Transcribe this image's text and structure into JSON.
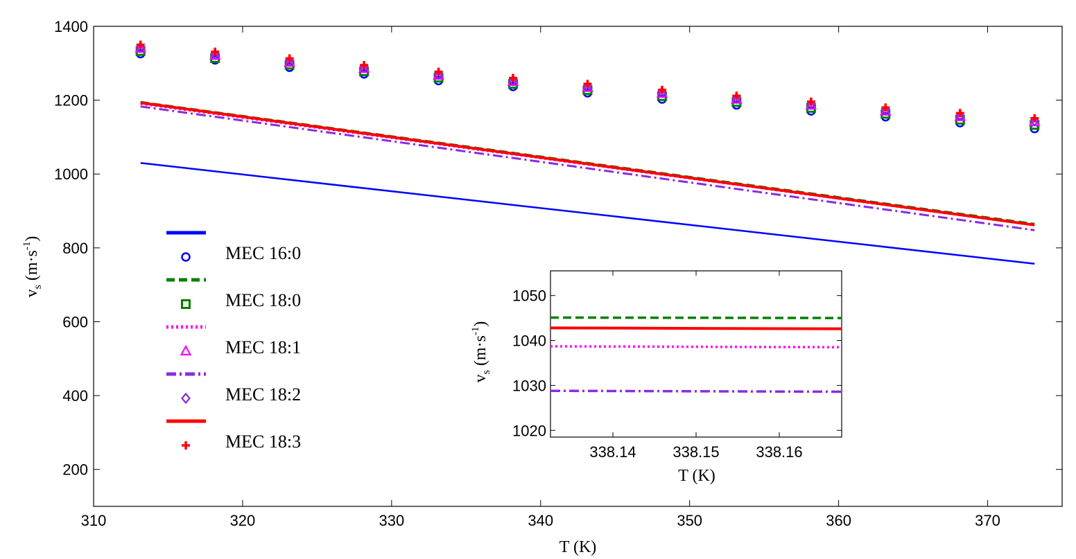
{
  "chart_data": [
    {
      "type": "line",
      "role": "main",
      "title": "",
      "xlabel": "T (K)",
      "ylabel": "v_s (m·s^-1)",
      "ylabel_main": "v",
      "ylabel_sub": "s",
      "ylabel_rest": " (m·s",
      "ylabel_sup": "-1",
      "ylabel_close": ")",
      "xlim": [
        310,
        375
      ],
      "ylim": [
        100,
        1400
      ],
      "xticks": [
        310,
        320,
        330,
        340,
        350,
        360,
        370
      ],
      "yticks": [
        200,
        400,
        600,
        800,
        1000,
        1200,
        1400
      ],
      "x": [
        313.15,
        318.15,
        323.15,
        328.15,
        333.15,
        338.15,
        343.15,
        348.15,
        353.15,
        358.15,
        363.15,
        368.15,
        373.15
      ],
      "series": [
        {
          "name": "MEC 16:0",
          "color": "#0000ff",
          "line_style": "solid",
          "marker": "circle",
          "line": [
            1030,
            757
          ],
          "points": [
            1326,
            1309,
            1289,
            1271,
            1253,
            1237,
            1220,
            1203,
            1187,
            1171,
            1155,
            1139,
            1123
          ]
        },
        {
          "name": "MEC 18:0",
          "color": "#007f00",
          "line_style": "dashed",
          "marker": "square",
          "line": [
            1195,
            865
          ],
          "points": [
            1333,
            1314,
            1296,
            1278,
            1261,
            1244,
            1227,
            1211,
            1195,
            1179,
            1163,
            1147,
            1133
          ]
        },
        {
          "name": "MEC 18:1",
          "color": "#ff00ff",
          "line_style": "dotted",
          "marker": "triangle",
          "line": [
            1190,
            861
          ],
          "points": [
            1340,
            1321,
            1302,
            1285,
            1267,
            1250,
            1234,
            1218,
            1202,
            1186,
            1170,
            1155,
            1141
          ]
        },
        {
          "name": "MEC 18:2",
          "color": "#8a2be2",
          "line_style": "dashdot",
          "marker": "diamond",
          "line": [
            1183,
            848
          ],
          "points": [
            1343,
            1324,
            1306,
            1288,
            1270,
            1253,
            1237,
            1221,
            1205,
            1189,
            1173,
            1158,
            1144
          ]
        },
        {
          "name": "MEC 18:3",
          "color": "#ff0000",
          "line_style": "solid",
          "marker": "plus",
          "line": [
            1193,
            862
          ],
          "points": [
            1350,
            1331,
            1313,
            1295,
            1277,
            1260,
            1244,
            1228,
            1212,
            1196,
            1180,
            1165,
            1151
          ]
        }
      ],
      "legend": [
        "MEC 16:0",
        "MEC 18:0",
        "MEC 18:1",
        "MEC 18:2",
        "MEC 18:3"
      ]
    },
    {
      "type": "line",
      "role": "inset",
      "xlabel": "T (K)",
      "ylabel": "v_s (m·s^-1)",
      "ylabel_main": "v",
      "ylabel_sub": "s",
      "ylabel_rest": " (m·s",
      "ylabel_sup": "-1",
      "ylabel_close": ")",
      "xlim": [
        338.1325,
        338.1675
      ],
      "ylim": [
        1018.5,
        1055.5
      ],
      "xticks": [
        "338.14",
        "338.15",
        "338.16"
      ],
      "xtick_values": [
        338.14,
        338.15,
        338.16
      ],
      "yticks": [
        1020,
        1030,
        1040,
        1050
      ],
      "series": [
        {
          "name": "MEC 18:0",
          "color": "#007f00",
          "line_style": "dashed",
          "values": [
            1045.1,
            1045.0
          ]
        },
        {
          "name": "MEC 18:3",
          "color": "#ff0000",
          "line_style": "solid",
          "values": [
            1042.8,
            1042.6
          ]
        },
        {
          "name": "MEC 18:1",
          "color": "#ff00ff",
          "line_style": "dotted",
          "values": [
            1038.7,
            1038.5
          ]
        },
        {
          "name": "MEC 18:2",
          "color": "#8a2be2",
          "line_style": "dashdot",
          "values": [
            1028.8,
            1028.6
          ]
        }
      ]
    }
  ]
}
